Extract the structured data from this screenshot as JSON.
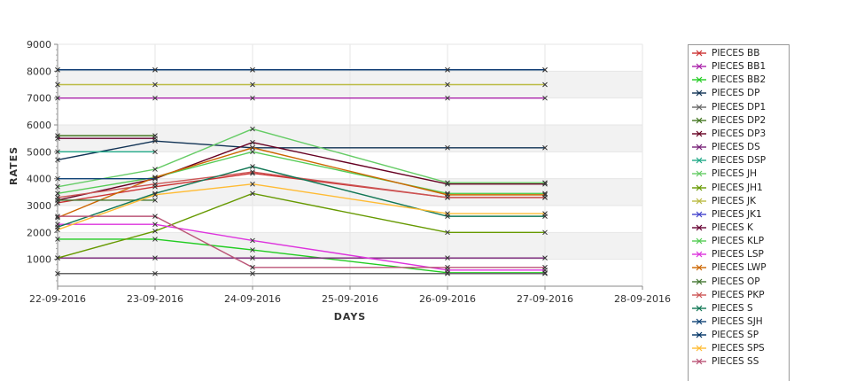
{
  "chart_data": {
    "type": "line",
    "title": "",
    "xlabel": "DAYS",
    "ylabel": "RATES",
    "x_ticks": [
      "22-09-2016",
      "23-09-2016",
      "24-09-2016",
      "25-09-2016",
      "26-09-2016",
      "27-09-2016",
      "28-09-2016"
    ],
    "y_ticks": [
      1000,
      2000,
      3000,
      4000,
      5000,
      6000,
      7000,
      8000,
      9000
    ],
    "xlim": [
      "22-09-2016",
      "28-09-2016"
    ],
    "ylim": [
      0,
      9000
    ],
    "legend_position": "right",
    "grid": "horizontal alternating bands",
    "marker": "x",
    "series": [
      {
        "name": "PIECES BB",
        "color": "#cc3333",
        "points": [
          [
            "22-09-2016",
            3100
          ],
          [
            "23-09-2016",
            3700
          ],
          [
            "24-09-2016",
            4200
          ],
          [
            "26-09-2016",
            3300
          ],
          [
            "27-09-2016",
            3300
          ]
        ]
      },
      {
        "name": "PIECES BB1",
        "color": "#aa22aa",
        "points": [
          [
            "22-09-2016",
            7000
          ],
          [
            "23-09-2016",
            7000
          ],
          [
            "24-09-2016",
            7000
          ],
          [
            "26-09-2016",
            7000
          ],
          [
            "27-09-2016",
            7000
          ]
        ]
      },
      {
        "name": "PIECES BB2",
        "color": "#22cc22",
        "points": [
          [
            "22-09-2016",
            1750
          ],
          [
            "23-09-2016",
            1750
          ],
          [
            "24-09-2016",
            1350
          ],
          [
            "26-09-2016",
            500
          ],
          [
            "27-09-2016",
            500
          ]
        ]
      },
      {
        "name": "PIECES DP",
        "color": "#113355",
        "points": [
          [
            "22-09-2016",
            4700
          ],
          [
            "23-09-2016",
            5400
          ],
          [
            "24-09-2016",
            5150
          ],
          [
            "26-09-2016",
            5150
          ],
          [
            "27-09-2016",
            5150
          ]
        ]
      },
      {
        "name": "PIECES DP1",
        "color": "#666666",
        "points": [
          [
            "22-09-2016",
            470
          ],
          [
            "23-09-2016",
            470
          ],
          [
            "24-09-2016",
            470
          ],
          [
            "26-09-2016",
            470
          ],
          [
            "27-09-2016",
            470
          ]
        ]
      },
      {
        "name": "PIECES DP2",
        "color": "#447722",
        "points": [
          [
            "22-09-2016",
            5600
          ],
          [
            "23-09-2016",
            5600
          ]
        ]
      },
      {
        "name": "PIECES DP3",
        "color": "#660022",
        "points": [
          [
            "22-09-2016",
            3200
          ],
          [
            "23-09-2016",
            4000
          ],
          [
            "24-09-2016",
            5350
          ],
          [
            "26-09-2016",
            3800
          ],
          [
            "27-09-2016",
            3800
          ]
        ]
      },
      {
        "name": "PIECES DS",
        "color": "#772277",
        "points": [
          [
            "22-09-2016",
            1050
          ],
          [
            "23-09-2016",
            1050
          ],
          [
            "24-09-2016",
            1050
          ],
          [
            "26-09-2016",
            1050
          ],
          [
            "27-09-2016",
            1050
          ]
        ]
      },
      {
        "name": "PIECES DSP",
        "color": "#22aa88",
        "points": [
          [
            "22-09-2016",
            5000
          ],
          [
            "23-09-2016",
            5000
          ]
        ]
      },
      {
        "name": "PIECES JH",
        "color": "#66cc66",
        "points": [
          [
            "22-09-2016",
            3700
          ],
          [
            "23-09-2016",
            4350
          ],
          [
            "24-09-2016",
            5850
          ],
          [
            "26-09-2016",
            3850
          ],
          [
            "27-09-2016",
            3850
          ]
        ]
      },
      {
        "name": "PIECES JH1",
        "color": "#669900",
        "points": [
          [
            "22-09-2016",
            1050
          ],
          [
            "23-09-2016",
            2050
          ],
          [
            "24-09-2016",
            3450
          ],
          [
            "26-09-2016",
            2000
          ],
          [
            "27-09-2016",
            2000
          ]
        ]
      },
      {
        "name": "PIECES JK",
        "color": "#bbbb44",
        "points": [
          [
            "22-09-2016",
            7500
          ],
          [
            "23-09-2016",
            7500
          ],
          [
            "24-09-2016",
            7500
          ],
          [
            "26-09-2016",
            7500
          ],
          [
            "27-09-2016",
            7500
          ]
        ]
      },
      {
        "name": "PIECES JK1",
        "color": "#4444cc",
        "points": [
          [
            "22-09-2016",
            8050
          ],
          [
            "23-09-2016",
            8050
          ],
          [
            "24-09-2016",
            8050
          ],
          [
            "26-09-2016",
            8050
          ],
          [
            "27-09-2016",
            8050
          ]
        ]
      },
      {
        "name": "PIECES K",
        "color": "#660033",
        "points": [
          [
            "22-09-2016",
            5500
          ],
          [
            "23-09-2016",
            5500
          ]
        ]
      },
      {
        "name": "PIECES KLP",
        "color": "#55cc55",
        "points": [
          [
            "22-09-2016",
            3450
          ],
          [
            "23-09-2016",
            4050
          ],
          [
            "24-09-2016",
            5000
          ],
          [
            "26-09-2016",
            3450
          ],
          [
            "27-09-2016",
            3450
          ]
        ]
      },
      {
        "name": "PIECES LSP",
        "color": "#dd33dd",
        "points": [
          [
            "22-09-2016",
            2300
          ],
          [
            "23-09-2016",
            2300
          ],
          [
            "24-09-2016",
            1700
          ],
          [
            "26-09-2016",
            600
          ],
          [
            "27-09-2016",
            600
          ]
        ]
      },
      {
        "name": "PIECES LWP",
        "color": "#cc6600",
        "points": [
          [
            "22-09-2016",
            2550
          ],
          [
            "23-09-2016",
            4050
          ],
          [
            "24-09-2016",
            5150
          ],
          [
            "26-09-2016",
            3400
          ],
          [
            "27-09-2016",
            3400
          ]
        ]
      },
      {
        "name": "PIECES OP",
        "color": "#447733",
        "points": [
          [
            "22-09-2016",
            3200
          ],
          [
            "23-09-2016",
            3200
          ]
        ]
      },
      {
        "name": "PIECES PKP",
        "color": "#cc5555",
        "points": [
          [
            "22-09-2016",
            3300
          ],
          [
            "23-09-2016",
            3800
          ],
          [
            "24-09-2016",
            4250
          ],
          [
            "26-09-2016",
            3300
          ],
          [
            "27-09-2016",
            3300
          ]
        ]
      },
      {
        "name": "PIECES S",
        "color": "#117755",
        "points": [
          [
            "22-09-2016",
            2200
          ],
          [
            "23-09-2016",
            3450
          ],
          [
            "24-09-2016",
            4450
          ],
          [
            "26-09-2016",
            2600
          ],
          [
            "27-09-2016",
            2600
          ]
        ]
      },
      {
        "name": "PIECES SJH",
        "color": "#114477",
        "points": [
          [
            "22-09-2016",
            4000
          ],
          [
            "23-09-2016",
            4000
          ]
        ]
      },
      {
        "name": "PIECES SP",
        "color": "#003366",
        "points": [
          [
            "22-09-2016",
            8050
          ],
          [
            "23-09-2016",
            8050
          ],
          [
            "24-09-2016",
            8050
          ],
          [
            "26-09-2016",
            8050
          ],
          [
            "27-09-2016",
            8050
          ]
        ]
      },
      {
        "name": "PIECES SPS",
        "color": "#ffbb33",
        "points": [
          [
            "22-09-2016",
            2100
          ],
          [
            "23-09-2016",
            3400
          ],
          [
            "24-09-2016",
            3800
          ],
          [
            "26-09-2016",
            2700
          ],
          [
            "27-09-2016",
            2700
          ]
        ]
      },
      {
        "name": "PIECES SS",
        "color": "#bb5577",
        "points": [
          [
            "22-09-2016",
            2600
          ],
          [
            "23-09-2016",
            2600
          ],
          [
            "24-09-2016",
            700
          ],
          [
            "26-09-2016",
            700
          ],
          [
            "27-09-2016",
            700
          ]
        ]
      }
    ]
  }
}
